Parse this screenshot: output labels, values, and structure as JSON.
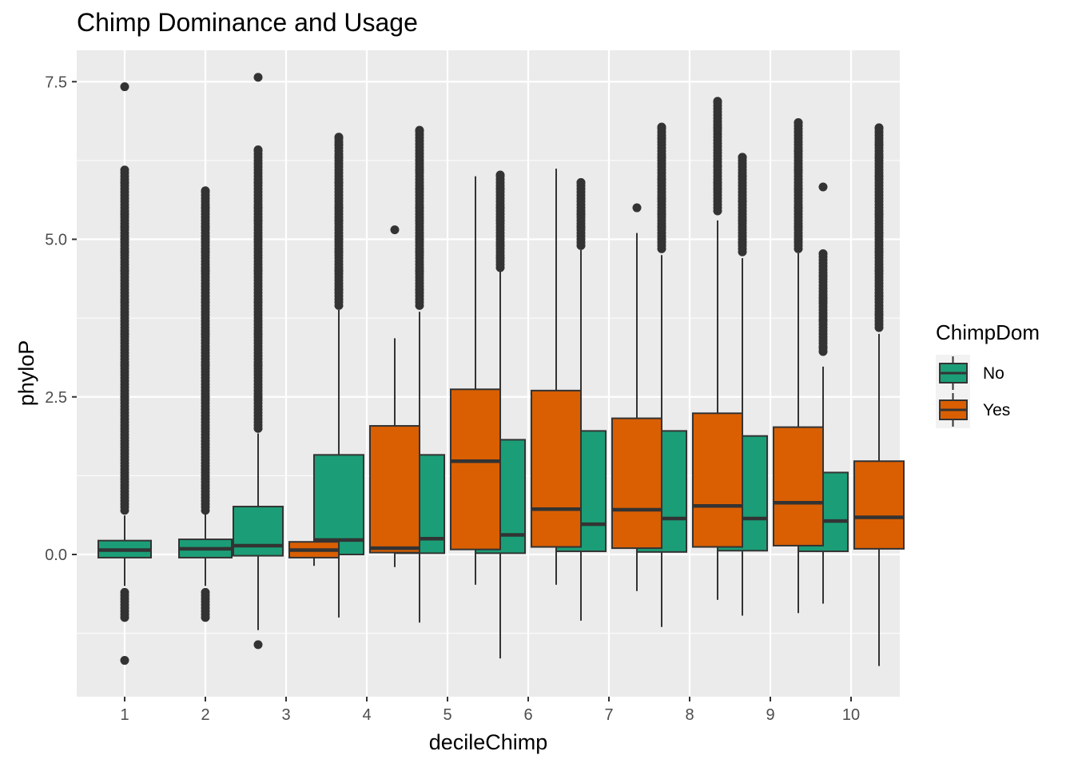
{
  "chart_data": {
    "type": "boxplot",
    "title": "Chimp Dominance and Usage",
    "xlabel": "decileChimp",
    "ylabel": "phyloP",
    "ylim": [
      -1.8,
      8.0
    ],
    "yticks": [
      0.0,
      2.5,
      5.0,
      7.5
    ],
    "ytick_labels": [
      "0.0",
      "2.5",
      "5.0",
      "7.5"
    ],
    "categories": [
      "1",
      "2",
      "3",
      "4",
      "5",
      "6",
      "7",
      "8",
      "9",
      "10"
    ],
    "grid": true,
    "legend": {
      "title": "ChimpDom",
      "position": "right",
      "entries": [
        "No",
        "Yes"
      ]
    },
    "colors": {
      "No": "#1b9e77",
      "Yes": "#d95f02",
      "panel": "#ebebeb",
      "grid": "#ffffff",
      "points": "#333333"
    },
    "series": [
      {
        "name": "No",
        "boxes": [
          {
            "category": "1",
            "min": -0.5,
            "q1": -0.05,
            "median": 0.07,
            "q3": 0.22,
            "max": 0.62,
            "outliers": [
              -1.68,
              -1.0,
              -0.9,
              -0.8,
              -0.7,
              -0.6,
              0.7,
              1.0,
              1.5,
              2.0,
              2.5,
              3.0,
              3.5,
              4.0,
              4.5,
              4.8,
              5.0,
              5.2,
              5.4,
              5.6,
              5.9,
              6.1,
              7.42
            ]
          },
          {
            "category": "2",
            "min": -0.5,
            "q1": -0.05,
            "median": 0.09,
            "q3": 0.24,
            "max": 0.65,
            "outliers": [
              -1.0,
              -0.9,
              -0.8,
              -0.7,
              -0.6,
              0.7,
              1.0,
              1.5,
              2.0,
              2.5,
              3.0,
              3.5,
              4.0,
              4.5,
              4.8,
              5.0,
              5.2,
              5.5,
              5.77
            ]
          },
          {
            "category": "3",
            "min": -1.2,
            "q1": -0.02,
            "median": 0.14,
            "q3": 0.76,
            "max": 1.92,
            "outliers": [
              -1.43,
              2.0,
              2.5,
              3.0,
              3.5,
              4.0,
              4.5,
              5.0,
              5.3,
              5.5,
              5.9,
              6.1,
              6.42,
              7.57
            ]
          },
          {
            "category": "4",
            "min": -1.0,
            "q1": 0.0,
            "median": 0.23,
            "q3": 1.58,
            "max": 3.88,
            "outliers": [
              3.95,
              4.2,
              4.5,
              4.8,
              5.0,
              5.3,
              5.5,
              5.9,
              6.1,
              6.3,
              6.5,
              6.62
            ]
          },
          {
            "category": "5",
            "min": -1.08,
            "q1": 0.02,
            "median": 0.25,
            "q3": 1.58,
            "max": 3.85,
            "outliers": [
              3.95,
              4.2,
              4.5,
              4.8,
              5.0,
              5.3,
              5.5,
              5.8,
              6.1,
              6.26,
              6.73
            ]
          },
          {
            "category": "6",
            "min": -1.65,
            "q1": 0.02,
            "median": 0.31,
            "q3": 1.82,
            "max": 4.5,
            "outliers": [
              4.55,
              4.7,
              4.9,
              5.1,
              5.3,
              5.5,
              5.8,
              6.02
            ]
          },
          {
            "category": "7",
            "min": -1.05,
            "q1": 0.05,
            "median": 0.48,
            "q3": 1.96,
            "max": 4.83,
            "outliers": [
              4.9,
              5.05,
              5.2,
              5.4,
              5.6,
              5.9
            ]
          },
          {
            "category": "8",
            "min": -1.15,
            "q1": 0.04,
            "median": 0.57,
            "q3": 1.96,
            "max": 4.75,
            "outliers": [
              4.85,
              5.0,
              5.2,
              5.4,
              5.65,
              5.95,
              6.3,
              6.6,
              6.78
            ]
          },
          {
            "category": "9",
            "min": -0.97,
            "q1": 0.06,
            "median": 0.57,
            "q3": 1.88,
            "max": 4.7,
            "outliers": [
              4.8,
              4.95,
              5.1,
              5.3,
              5.6,
              6.0,
              6.3
            ]
          },
          {
            "category": "10",
            "min": -0.78,
            "q1": 0.05,
            "median": 0.53,
            "q3": 1.3,
            "max": 2.98,
            "outliers": [
              3.22,
              3.3,
              3.73,
              4.02,
              4.07,
              4.42,
              4.77,
              5.83
            ]
          }
        ]
      },
      {
        "name": "Yes",
        "boxes": [
          {
            "category": "3",
            "min": -0.18,
            "q1": -0.05,
            "median": 0.07,
            "q3": 0.2,
            "max": 0.3,
            "outliers": []
          },
          {
            "category": "4",
            "min": -0.2,
            "q1": 0.03,
            "median": 0.1,
            "q3": 2.04,
            "max": 3.43,
            "outliers": [
              5.15
            ]
          },
          {
            "category": "5",
            "min": -0.48,
            "q1": 0.08,
            "median": 1.48,
            "q3": 2.62,
            "max": 6.0,
            "outliers": []
          },
          {
            "category": "6",
            "min": -0.48,
            "q1": 0.12,
            "median": 0.72,
            "q3": 2.6,
            "max": 6.12,
            "outliers": []
          },
          {
            "category": "7",
            "min": -0.58,
            "q1": 0.1,
            "median": 0.71,
            "q3": 2.16,
            "max": 5.1,
            "outliers": [
              5.5
            ]
          },
          {
            "category": "8",
            "min": -0.72,
            "q1": 0.12,
            "median": 0.77,
            "q3": 2.24,
            "max": 5.3,
            "outliers": [
              5.45,
              5.6,
              5.8,
              5.9,
              6.17,
              6.77,
              7.19
            ]
          },
          {
            "category": "9",
            "min": -0.93,
            "q1": 0.14,
            "median": 0.82,
            "q3": 2.02,
            "max": 4.78,
            "outliers": [
              4.85,
              5.0,
              5.2,
              5.5,
              5.8,
              6.1,
              6.4,
              6.6,
              6.85
            ]
          },
          {
            "category": "10",
            "min": -1.77,
            "q1": 0.09,
            "median": 0.59,
            "q3": 1.48,
            "max": 3.5,
            "outliers": [
              3.6,
              3.8,
              4.1,
              4.5,
              4.8,
              5.1,
              5.4,
              5.6,
              6.0,
              6.3,
              6.5,
              6.77
            ]
          }
        ]
      }
    ]
  }
}
